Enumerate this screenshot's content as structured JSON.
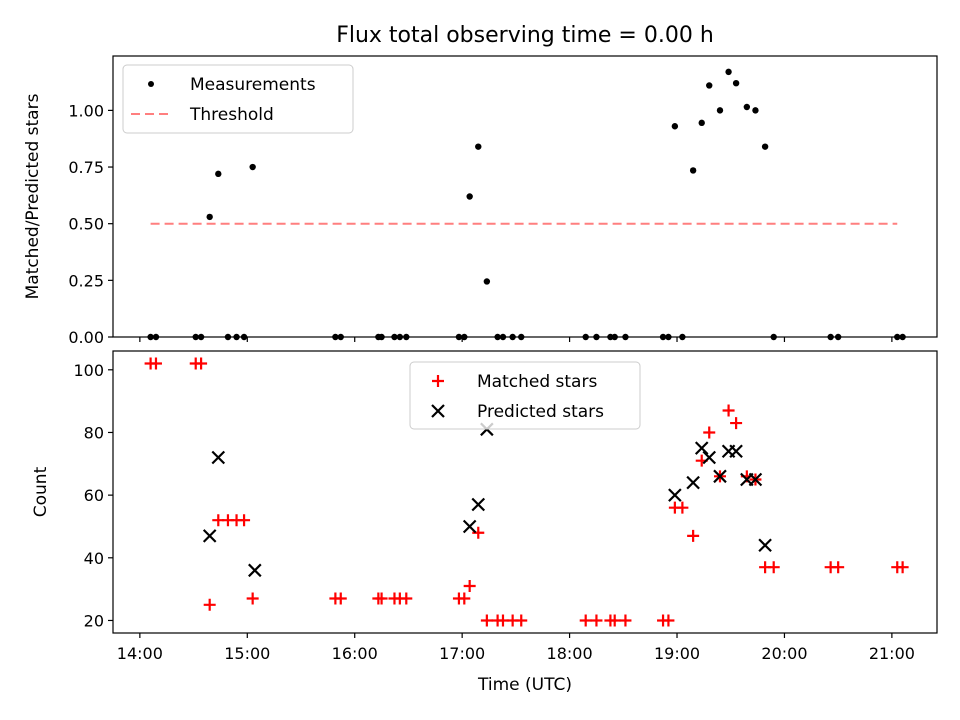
{
  "title": "Flux total observing time = 0.00 h",
  "chart_data": [
    {
      "type": "scatter",
      "panel": "top",
      "ylabel": "Matched/Predicted stars",
      "xlabel": "",
      "x_unit": "hours (UTC)",
      "xlim": [
        13.75,
        21.42
      ],
      "ylim": [
        0,
        1.24
      ],
      "yticks": [
        0,
        0.25,
        0.5,
        0.75,
        1.0
      ],
      "ytick_labels": [
        "0.00",
        "0.25",
        "0.50",
        "0.75",
        "1.00"
      ],
      "grid": false,
      "legend_position": "upper-left",
      "series": [
        {
          "name": "Measurements",
          "marker": "dot",
          "color": "#000000",
          "x": [
            14.1,
            14.15,
            14.52,
            14.57,
            14.65,
            14.73,
            14.82,
            14.9,
            14.97,
            15.05,
            15.82,
            15.87,
            16.22,
            16.25,
            16.37,
            16.42,
            16.48,
            16.97,
            17.02,
            17.07,
            17.15,
            17.23,
            17.33,
            17.38,
            17.47,
            17.55,
            18.15,
            18.25,
            18.38,
            18.42,
            18.52,
            18.87,
            18.92,
            18.98,
            19.05,
            19.15,
            19.23,
            19.3,
            19.4,
            19.48,
            19.55,
            19.65,
            19.73,
            19.82,
            19.9,
            20.43,
            20.5,
            21.05,
            21.1
          ],
          "y": [
            0,
            0,
            0,
            0,
            0.53,
            0.72,
            0,
            0,
            0,
            0.75,
            0,
            0,
            0,
            0,
            0,
            0,
            0,
            0,
            0,
            0.62,
            0.84,
            0.245,
            0,
            0,
            0,
            0,
            0,
            0,
            0,
            0,
            0,
            0,
            0,
            0.93,
            0,
            0.735,
            0.945,
            1.11,
            1.0,
            1.17,
            1.12,
            1.015,
            1.0,
            0.84,
            0,
            0,
            0,
            0,
            0
          ]
        },
        {
          "name": "Threshold",
          "style": "dashed",
          "color": "#ff7f7f",
          "x": [
            14.1,
            21.05
          ],
          "y": [
            0.5,
            0.5
          ]
        }
      ]
    },
    {
      "type": "scatter",
      "panel": "bottom",
      "xlabel": "Time (UTC)",
      "ylabel": "Count",
      "x_unit": "hours (UTC)",
      "xlim": [
        13.75,
        21.42
      ],
      "ylim": [
        16,
        106
      ],
      "xticks": [
        14,
        15,
        16,
        17,
        18,
        19,
        20,
        21
      ],
      "xtick_labels": [
        "14:00",
        "15:00",
        "16:00",
        "17:00",
        "18:00",
        "19:00",
        "20:00",
        "21:00"
      ],
      "yticks": [
        20,
        40,
        60,
        80,
        100
      ],
      "ytick_labels": [
        "20",
        "40",
        "60",
        "80",
        "100"
      ],
      "grid": false,
      "legend_position": "upper-center",
      "series": [
        {
          "name": "Matched stars",
          "marker": "plus",
          "color": "#ff0000",
          "x": [
            14.1,
            14.15,
            14.52,
            14.57,
            14.65,
            14.73,
            14.82,
            14.9,
            14.97,
            15.05,
            15.82,
            15.87,
            16.22,
            16.25,
            16.37,
            16.42,
            16.48,
            16.97,
            17.02,
            17.07,
            17.15,
            17.23,
            17.33,
            17.38,
            17.47,
            17.55,
            18.15,
            18.25,
            18.38,
            18.42,
            18.52,
            18.87,
            18.92,
            18.98,
            19.05,
            19.15,
            19.23,
            19.3,
            19.4,
            19.48,
            19.55,
            19.65,
            19.73,
            19.82,
            19.9,
            20.43,
            20.5,
            21.05,
            21.1
          ],
          "y": [
            102,
            102,
            102,
            102,
            25,
            52,
            52,
            52,
            52,
            27,
            27,
            27,
            27,
            27,
            27,
            27,
            27,
            27,
            27,
            31,
            48,
            20,
            20,
            20,
            20,
            20,
            20,
            20,
            20,
            20,
            20,
            20,
            20,
            56,
            56,
            47,
            71,
            80,
            66,
            87,
            83,
            66,
            65,
            37,
            37,
            37,
            37,
            37,
            37
          ]
        },
        {
          "name": "Predicted stars",
          "marker": "x",
          "color": "#000000",
          "x": [
            14.65,
            14.73,
            15.07,
            17.07,
            17.15,
            17.23,
            18.98,
            19.15,
            19.23,
            19.3,
            19.4,
            19.48,
            19.55,
            19.65,
            19.73,
            19.82
          ],
          "y": [
            47,
            72,
            36,
            50,
            57,
            81,
            60,
            64,
            75,
            72,
            66,
            74,
            74,
            65,
            65,
            44
          ]
        }
      ]
    }
  ]
}
